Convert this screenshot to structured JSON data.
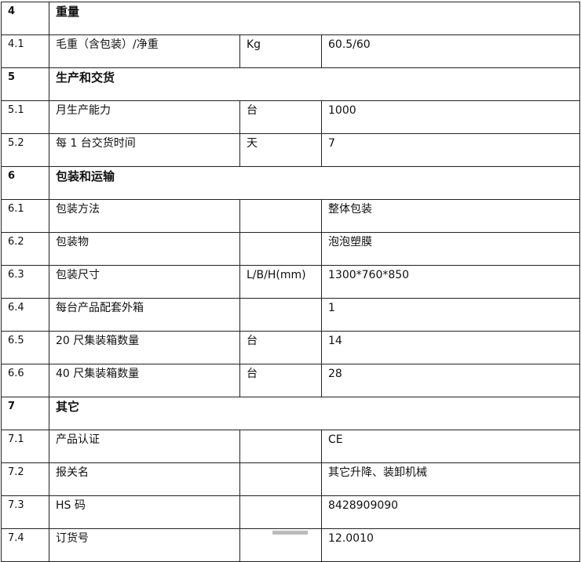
{
  "rows": [
    {
      "type": "section",
      "no": "4",
      "name": "重量"
    },
    {
      "type": "item",
      "no": "4.1",
      "name": "毛重（含包装）/净重",
      "unit": "Kg",
      "value": "60.5/60"
    },
    {
      "type": "section",
      "no": "5",
      "name": "生产和交货"
    },
    {
      "type": "item",
      "no": "5.1",
      "name": "月生产能力",
      "unit": "台",
      "value": "1000"
    },
    {
      "type": "item",
      "no": "5.2",
      "name": "每 1 台交货时间",
      "unit": "天",
      "value": "7"
    },
    {
      "type": "section",
      "no": "6",
      "name": "包装和运输"
    },
    {
      "type": "item",
      "no": "6.1",
      "name": "包装方法",
      "unit": "",
      "value": "整体包装"
    },
    {
      "type": "item",
      "no": "6.2",
      "name": "包装物",
      "unit": "",
      "value": "泡泡塑膜"
    },
    {
      "type": "item",
      "no": "6.3",
      "name": "包装尺寸",
      "unit": "L/B/H(mm)",
      "value": "1300*760*850"
    },
    {
      "type": "item",
      "no": "6.4",
      "name": "每台产品配套外箱",
      "unit": "",
      "value": "1"
    },
    {
      "type": "item",
      "no": "6.5",
      "name": "20 尺集装箱数量",
      "unit": "台",
      "value": "14"
    },
    {
      "type": "item",
      "no": "6.6",
      "name": "40 尺集装箱数量",
      "unit": "台",
      "value": "28"
    },
    {
      "type": "section",
      "no": "7",
      "name": "其它"
    },
    {
      "type": "item",
      "no": "7.1",
      "name": "产品认证",
      "unit": "",
      "value": "CE"
    },
    {
      "type": "item",
      "no": "7.2",
      "name": "报关名",
      "unit": "",
      "value": "其它升降、装卸机械"
    },
    {
      "type": "item",
      "no": "7.3",
      "name": "HS 码",
      "unit": "",
      "value": "8428909090"
    },
    {
      "type": "item",
      "no": "7.4",
      "name": "订货号",
      "unit": "",
      "value": "12.0010"
    }
  ]
}
